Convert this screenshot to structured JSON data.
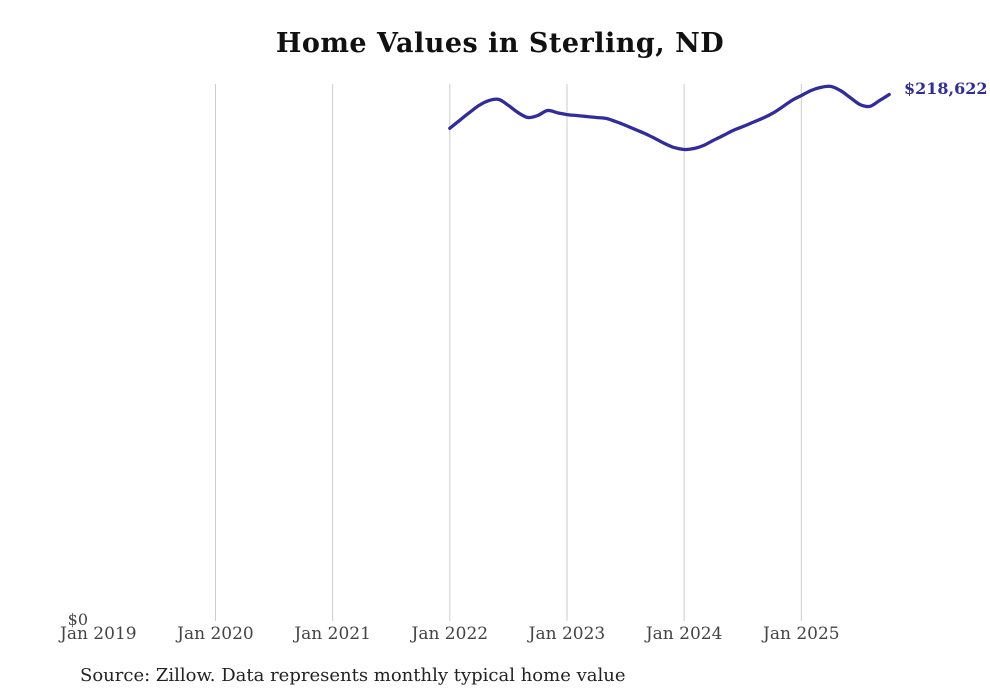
{
  "page": {
    "title": "Home Values in Sterling, ND"
  },
  "header": {
    "title": "Home Values in Sterling, ND"
  },
  "footer": {
    "source_note": "Source: Zillow. Data represents monthly typical home value"
  },
  "axes": {
    "y_zero_label": "$0",
    "x_ticks": [
      {
        "label": "Jan 2019",
        "has_gridline": false
      },
      {
        "label": "Jan 2020",
        "has_gridline": true
      },
      {
        "label": "Jan 2021",
        "has_gridline": true
      },
      {
        "label": "Jan 2022",
        "has_gridline": true
      },
      {
        "label": "Jan 2023",
        "has_gridline": true
      },
      {
        "label": "Jan 2024",
        "has_gridline": true
      },
      {
        "label": "Jan 2025",
        "has_gridline": true
      }
    ]
  },
  "annotation": {
    "latest_value_label": "$218,622"
  },
  "colors": {
    "background": "#ffffff",
    "line": "#312c9c",
    "gridline": "#cccccc",
    "axis_text": "#444444",
    "title_text": "#111111",
    "source_text": "#222222"
  },
  "chart_data": {
    "type": "line",
    "title": "Home Values in Sterling, ND",
    "series_name": "Monthly typical home value (Zillow)",
    "xlabel": "",
    "ylabel": "",
    "x_tick_labels": [
      "Jan 2019",
      "Jan 2020",
      "Jan 2021",
      "Jan 2022",
      "Jan 2023",
      "Jan 2024",
      "Jan 2025"
    ],
    "y_tick_labels": [
      "$0"
    ],
    "ylim": [
      0,
      223000
    ],
    "grid": "vertical-only",
    "legend": "none",
    "end_annotation": "$218,622",
    "x": [
      "2022-01",
      "2022-02",
      "2022-03",
      "2022-04",
      "2022-05",
      "2022-06",
      "2022-07",
      "2022-08",
      "2022-09",
      "2022-10",
      "2022-11",
      "2022-12",
      "2023-01",
      "2023-02",
      "2023-03",
      "2023-04",
      "2023-05",
      "2023-06",
      "2023-07",
      "2023-08",
      "2023-09",
      "2023-10",
      "2023-11",
      "2023-12",
      "2024-01",
      "2024-02",
      "2024-03",
      "2024-04",
      "2024-05",
      "2024-06",
      "2024-07",
      "2024-08",
      "2024-09",
      "2024-10",
      "2024-11",
      "2024-12",
      "2025-01",
      "2025-02",
      "2025-03",
      "2025-04",
      "2025-05",
      "2025-06",
      "2025-07",
      "2025-08",
      "2025-09",
      "2025-10"
    ],
    "values": [
      204600,
      207900,
      211100,
      214100,
      216100,
      216600,
      214100,
      211100,
      209100,
      209900,
      212000,
      211100,
      210300,
      209900,
      209500,
      209100,
      208700,
      207400,
      205800,
      204100,
      202400,
      200400,
      198300,
      196600,
      195800,
      196200,
      197500,
      199600,
      201600,
      203700,
      205300,
      207000,
      208700,
      210700,
      213300,
      216100,
      218200,
      220300,
      221600,
      222000,
      220300,
      217400,
      214500,
      213700,
      216100,
      218622
    ]
  }
}
